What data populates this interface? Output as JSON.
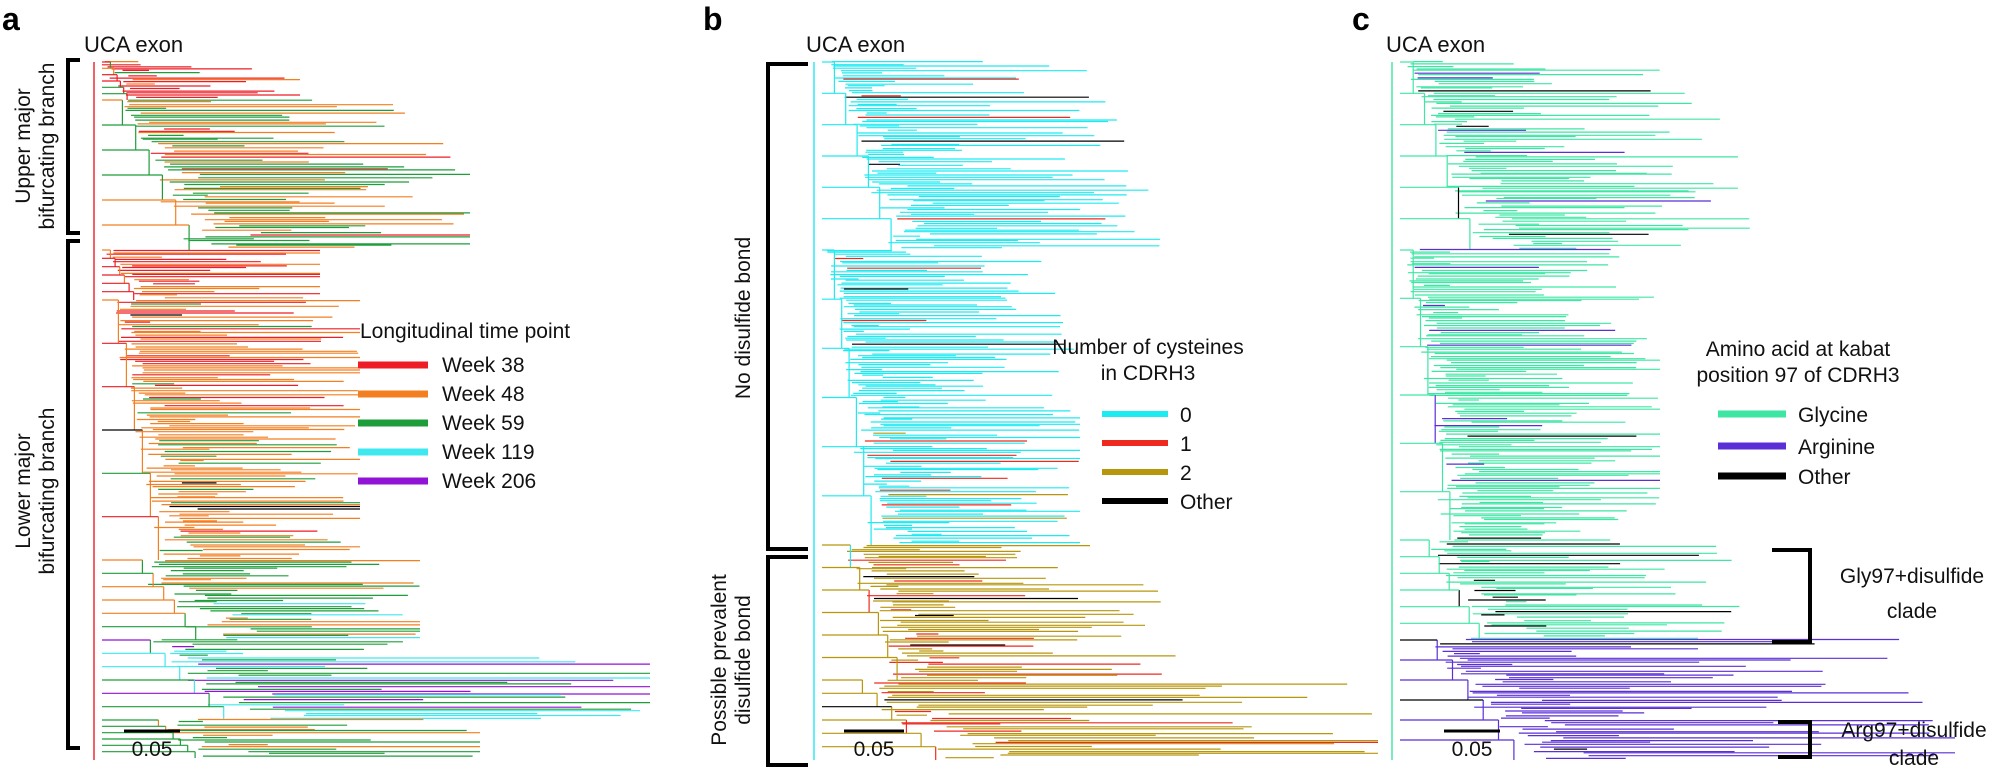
{
  "panels": [
    {
      "letter": "a",
      "root_label": "UCA exon",
      "scale_label": "0.05",
      "side_labels": [
        {
          "line1": "Upper major",
          "line2": "bifurcating branch"
        },
        {
          "line1": "Lower major",
          "line2": "bifurcating branch"
        }
      ],
      "legend": {
        "title_lines": [
          "Longitudinal time point"
        ],
        "entries": [
          {
            "label": "Week 38",
            "color": "#ee1c25"
          },
          {
            "label": "Week 48",
            "color": "#f47f20"
          },
          {
            "label": "Week 59",
            "color": "#1f9d3a"
          },
          {
            "label": "Week 119",
            "color": "#3ee8ee"
          },
          {
            "label": "Week 206",
            "color": "#9013d6"
          }
        ]
      }
    },
    {
      "letter": "b",
      "root_label": "UCA exon",
      "scale_label": "0.05",
      "side_labels": [
        {
          "line1": "No disulfide bond",
          "line2": ""
        },
        {
          "line1": "Possible prevalent",
          "line2": "disulfide bond"
        }
      ],
      "legend": {
        "title_lines": [
          "Number of cysteines",
          "in CDRH3"
        ],
        "entries": [
          {
            "label": "0",
            "color": "#1eeaf2"
          },
          {
            "label": "1",
            "color": "#ee2a1e"
          },
          {
            "label": "2",
            "color": "#b8960c"
          },
          {
            "label": "Other",
            "color": "#000000"
          }
        ]
      }
    },
    {
      "letter": "c",
      "root_label": "UCA exon",
      "scale_label": "0.05",
      "side_labels": [],
      "clade_labels": [
        {
          "line1": "Gly97+disulfide",
          "line2": "clade"
        },
        {
          "line1": "Arg97+disulfide",
          "line2": "clade"
        }
      ],
      "legend": {
        "title_lines": [
          "Amino acid at kabat",
          "position 97 of CDRH3"
        ],
        "entries": [
          {
            "label": "Glycine",
            "color": "#3ee6a4"
          },
          {
            "label": "Arginine",
            "color": "#5a2fd6"
          },
          {
            "label": "Other",
            "color": "#000000"
          }
        ]
      }
    }
  ]
}
